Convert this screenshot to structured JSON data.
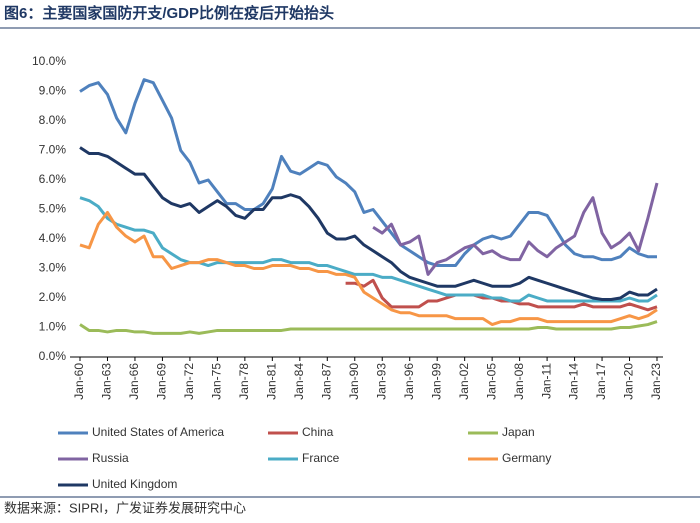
{
  "chart_data": {
    "type": "line",
    "title": "图6：主要国家国防开支/GDP比例在疫后开始抬头",
    "source": "数据来源：SIPRI，广发证券发展研究中心",
    "categories": [
      "Jan-60",
      null,
      null,
      "Jan-63",
      null,
      null,
      "Jan-66",
      null,
      null,
      "Jan-69",
      null,
      null,
      "Jan-72",
      null,
      null,
      "Jan-75",
      null,
      null,
      "Jan-78",
      null,
      null,
      "Jan-81",
      null,
      null,
      "Jan-84",
      null,
      null,
      "Jan-87",
      null,
      null,
      "Jan-90",
      null,
      null,
      "Jan-93",
      null,
      null,
      "Jan-96",
      null,
      null,
      "Jan-99",
      null,
      null,
      "Jan-02",
      null,
      null,
      "Jan-05",
      null,
      null,
      "Jan-08",
      null,
      null,
      "Jan-11",
      null,
      null,
      "Jan-14",
      null,
      null,
      "Jan-17",
      null,
      null,
      "Jan-20",
      null,
      null,
      "Jan-23"
    ],
    "ylim": [
      0,
      10
    ],
    "yticks": [
      {
        "value": 0,
        "label": "0.0%"
      },
      {
        "value": 1,
        "label": "1.0%"
      },
      {
        "value": 2,
        "label": "2.0%"
      },
      {
        "value": 3,
        "label": "3.0%"
      },
      {
        "value": 4,
        "label": "4.0%"
      },
      {
        "value": 5,
        "label": "5.0%"
      },
      {
        "value": 6,
        "label": "6.0%"
      },
      {
        "value": 7,
        "label": "7.0%"
      },
      {
        "value": 8,
        "label": "8.0%"
      },
      {
        "value": 9,
        "label": "9.0%"
      },
      {
        "value": 10,
        "label": "10.0%"
      }
    ],
    "grid": false,
    "series": [
      {
        "name": "United States of America",
        "color": "#4f81bd",
        "values": [
          9.0,
          9.2,
          9.3,
          8.9,
          8.1,
          7.6,
          8.6,
          9.4,
          9.3,
          8.7,
          8.1,
          7.0,
          6.6,
          5.9,
          6.0,
          5.6,
          5.2,
          5.2,
          5.0,
          5.0,
          5.2,
          5.7,
          6.8,
          6.3,
          6.2,
          6.4,
          6.6,
          6.5,
          6.1,
          5.9,
          5.6,
          4.9,
          5.0,
          4.6,
          4.2,
          3.8,
          3.6,
          3.4,
          3.2,
          3.1,
          3.1,
          3.1,
          3.5,
          3.8,
          4.0,
          4.1,
          4.0,
          4.1,
          4.5,
          4.9,
          4.9,
          4.8,
          4.3,
          3.8,
          3.5,
          3.4,
          3.4,
          3.3,
          3.3,
          3.4,
          3.7,
          3.5,
          3.4,
          3.4
        ]
      },
      {
        "name": "China",
        "color": "#c0504d",
        "values": [
          null,
          null,
          null,
          null,
          null,
          null,
          null,
          null,
          null,
          null,
          null,
          null,
          null,
          null,
          null,
          null,
          null,
          null,
          null,
          null,
          null,
          null,
          null,
          null,
          null,
          null,
          null,
          null,
          null,
          2.5,
          2.5,
          2.4,
          2.6,
          2.0,
          1.7,
          1.7,
          1.7,
          1.7,
          1.9,
          1.9,
          2.0,
          2.1,
          2.1,
          2.1,
          2.0,
          2.0,
          1.9,
          1.9,
          1.8,
          1.8,
          1.7,
          1.7,
          1.7,
          1.7,
          1.7,
          1.8,
          1.7,
          1.7,
          1.7,
          1.7,
          1.8,
          1.7,
          1.6,
          1.7
        ]
      },
      {
        "name": "Japan",
        "color": "#9bbb59",
        "values": [
          1.1,
          0.9,
          0.9,
          0.85,
          0.9,
          0.9,
          0.85,
          0.85,
          0.8,
          0.8,
          0.8,
          0.8,
          0.85,
          0.8,
          0.85,
          0.9,
          0.9,
          0.9,
          0.9,
          0.9,
          0.9,
          0.9,
          0.9,
          0.95,
          0.95,
          0.95,
          0.95,
          0.95,
          0.95,
          0.95,
          0.95,
          0.95,
          0.95,
          0.95,
          0.95,
          0.95,
          0.95,
          0.95,
          0.95,
          0.95,
          0.95,
          0.95,
          0.95,
          0.95,
          0.95,
          0.95,
          0.95,
          0.95,
          0.95,
          0.95,
          1.0,
          1.0,
          0.95,
          0.95,
          0.95,
          0.95,
          0.95,
          0.95,
          0.95,
          1.0,
          1.0,
          1.05,
          1.1,
          1.2
        ]
      },
      {
        "name": "Russia",
        "color": "#8064a2",
        "values": [
          null,
          null,
          null,
          null,
          null,
          null,
          null,
          null,
          null,
          null,
          null,
          null,
          null,
          null,
          null,
          null,
          null,
          null,
          null,
          null,
          null,
          null,
          null,
          null,
          null,
          null,
          null,
          null,
          null,
          null,
          null,
          null,
          4.4,
          4.2,
          4.5,
          3.8,
          3.9,
          4.1,
          2.8,
          3.2,
          3.3,
          3.5,
          3.7,
          3.8,
          3.5,
          3.6,
          3.4,
          3.3,
          3.3,
          3.9,
          3.6,
          3.4,
          3.7,
          3.9,
          4.1,
          4.9,
          5.4,
          4.2,
          3.7,
          3.9,
          4.2,
          3.6,
          4.7,
          5.9
        ]
      },
      {
        "name": "France",
        "color": "#4bacc6",
        "values": [
          5.4,
          5.3,
          5.1,
          4.7,
          4.5,
          4.4,
          4.3,
          4.3,
          4.2,
          3.7,
          3.5,
          3.3,
          3.2,
          3.2,
          3.1,
          3.2,
          3.2,
          3.2,
          3.2,
          3.2,
          3.2,
          3.3,
          3.3,
          3.2,
          3.2,
          3.2,
          3.1,
          3.1,
          3.0,
          2.9,
          2.8,
          2.8,
          2.8,
          2.7,
          2.7,
          2.6,
          2.5,
          2.4,
          2.3,
          2.2,
          2.1,
          2.1,
          2.1,
          2.1,
          2.1,
          2.0,
          2.0,
          1.9,
          1.9,
          2.1,
          2.0,
          1.9,
          1.9,
          1.9,
          1.9,
          1.9,
          1.9,
          1.9,
          1.9,
          1.9,
          2.0,
          1.9,
          1.9,
          2.1
        ]
      },
      {
        "name": "Germany",
        "color": "#f79646",
        "values": [
          3.8,
          3.7,
          4.5,
          4.9,
          4.4,
          4.1,
          3.9,
          4.1,
          3.4,
          3.4,
          3.0,
          3.1,
          3.2,
          3.2,
          3.3,
          3.3,
          3.2,
          3.1,
          3.1,
          3.0,
          3.0,
          3.1,
          3.1,
          3.1,
          3.0,
          3.0,
          2.9,
          2.9,
          2.8,
          2.8,
          2.7,
          2.2,
          2.0,
          1.8,
          1.6,
          1.5,
          1.5,
          1.4,
          1.4,
          1.4,
          1.4,
          1.3,
          1.3,
          1.3,
          1.3,
          1.1,
          1.2,
          1.2,
          1.3,
          1.3,
          1.3,
          1.2,
          1.2,
          1.2,
          1.2,
          1.2,
          1.2,
          1.2,
          1.2,
          1.3,
          1.4,
          1.3,
          1.4,
          1.6
        ]
      },
      {
        "name": "United Kingdom",
        "color": "#1f3864",
        "values": [
          7.1,
          6.9,
          6.9,
          6.8,
          6.6,
          6.4,
          6.2,
          6.2,
          5.8,
          5.4,
          5.2,
          5.1,
          5.2,
          4.9,
          5.1,
          5.3,
          5.1,
          4.8,
          4.7,
          5.0,
          5.0,
          5.4,
          5.4,
          5.5,
          5.4,
          5.1,
          4.7,
          4.2,
          4.0,
          4.0,
          4.1,
          3.8,
          3.6,
          3.4,
          3.2,
          2.9,
          2.7,
          2.6,
          2.5,
          2.4,
          2.4,
          2.4,
          2.5,
          2.6,
          2.5,
          2.4,
          2.4,
          2.4,
          2.5,
          2.7,
          2.6,
          2.5,
          2.4,
          2.3,
          2.2,
          2.1,
          2.0,
          1.95,
          1.95,
          2.0,
          2.2,
          2.1,
          2.1,
          2.3
        ]
      }
    ]
  }
}
